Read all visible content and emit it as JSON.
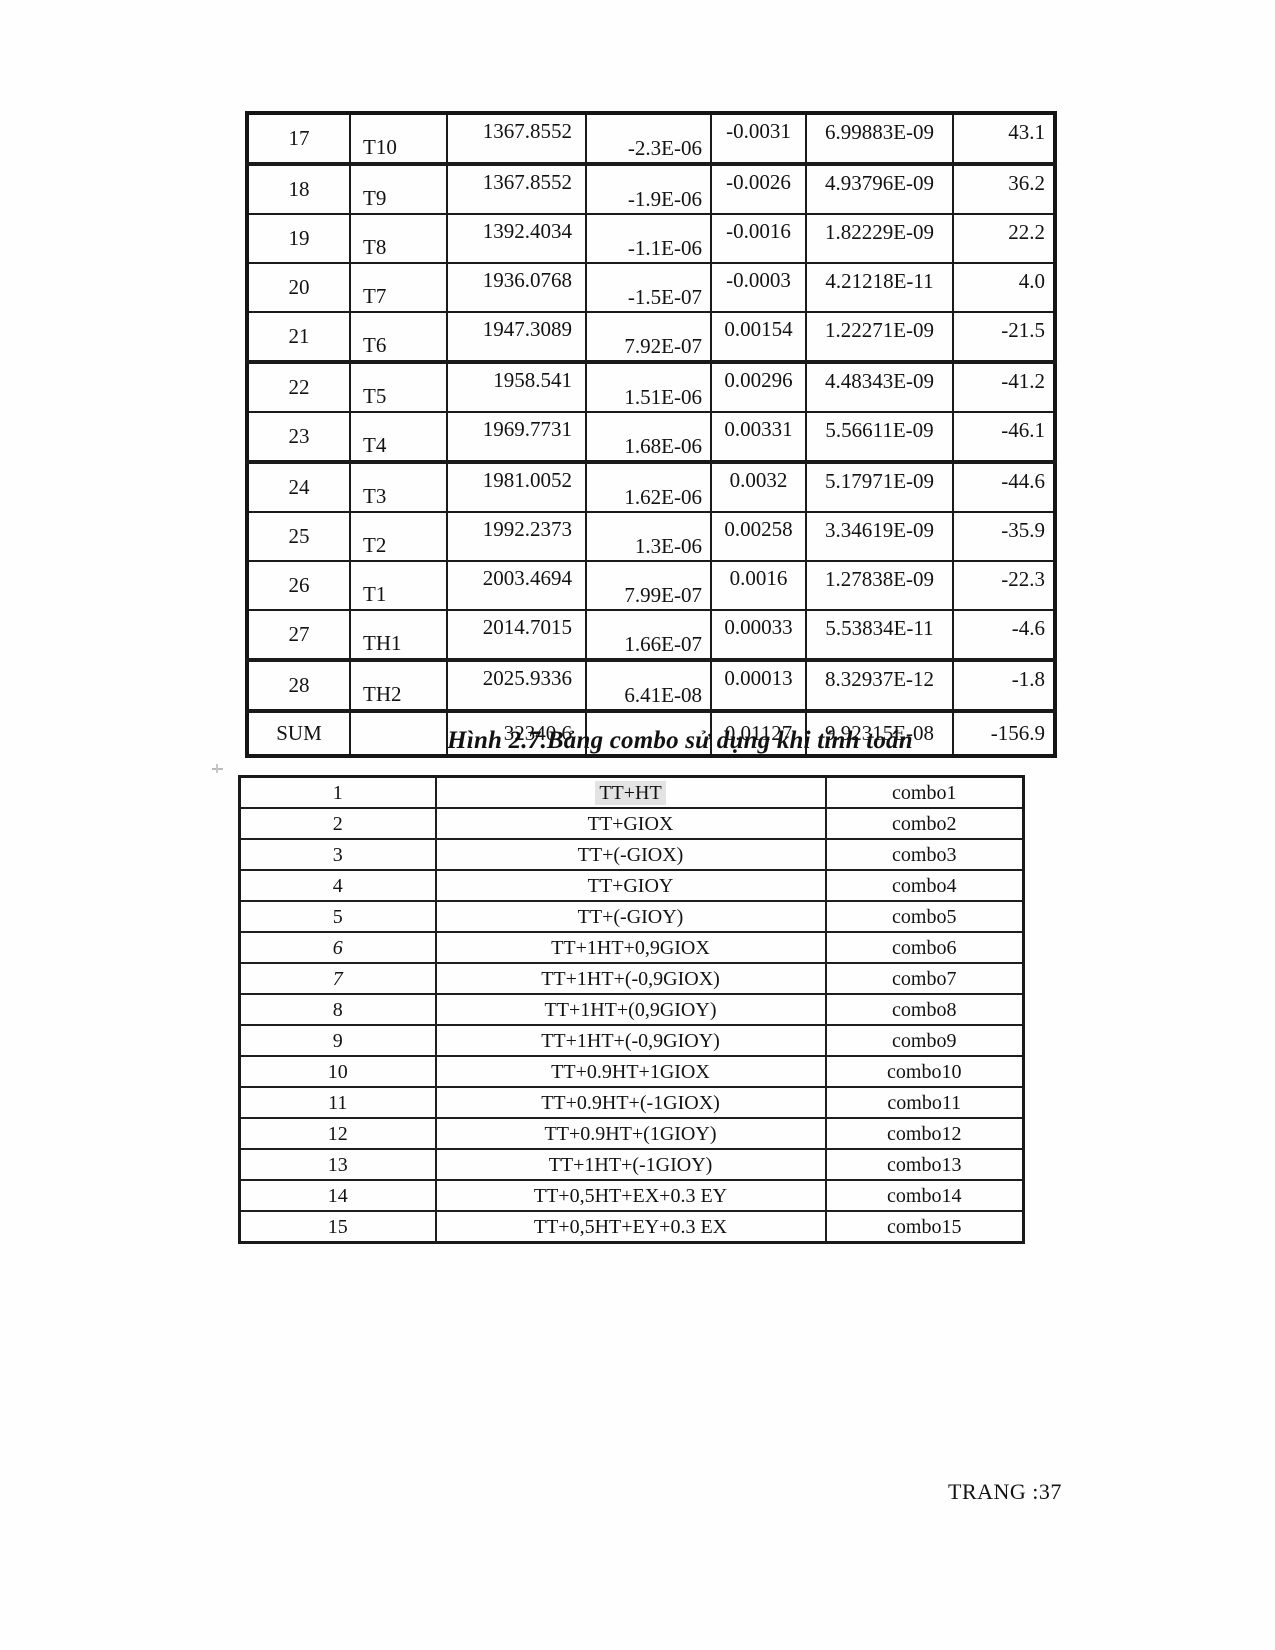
{
  "page": {
    "footer": "TRANG :37"
  },
  "caption": "Hình 2.7.Bảng combo sử dụng khi tính toán",
  "results_table": {
    "rows": [
      {
        "no": "17",
        "label": "T10",
        "v1": "1367.8552",
        "v2": "-2.3E-06",
        "v3": "-0.0031",
        "v4": "6.99883E-09",
        "v5": "43.1"
      },
      {
        "no": "18",
        "label": "T9",
        "v1": "1367.8552",
        "v2": "-1.9E-06",
        "v3": "-0.0026",
        "v4": "4.93796E-09",
        "v5": "36.2"
      },
      {
        "no": "19",
        "label": "T8",
        "v1": "1392.4034",
        "v2": "-1.1E-06",
        "v3": "-0.0016",
        "v4": "1.82229E-09",
        "v5": "22.2"
      },
      {
        "no": "20",
        "label": "T7",
        "v1": "1936.0768",
        "v2": "-1.5E-07",
        "v3": "-0.0003",
        "v4": "4.21218E-11",
        "v5": "4.0"
      },
      {
        "no": "21",
        "label": "T6",
        "v1": "1947.3089",
        "v2": "7.92E-07",
        "v3": "0.00154",
        "v4": "1.22271E-09",
        "v5": "-21.5"
      },
      {
        "no": "22",
        "label": "T5",
        "v1": "1958.541",
        "v2": "1.51E-06",
        "v3": "0.00296",
        "v4": "4.48343E-09",
        "v5": "-41.2"
      },
      {
        "no": "23",
        "label": "T4",
        "v1": "1969.7731",
        "v2": "1.68E-06",
        "v3": "0.00331",
        "v4": "5.56611E-09",
        "v5": "-46.1"
      },
      {
        "no": "24",
        "label": "T3",
        "v1": "1981.0052",
        "v2": "1.62E-06",
        "v3": "0.0032",
        "v4": "5.17971E-09",
        "v5": "-44.6"
      },
      {
        "no": "25",
        "label": "T2",
        "v1": "1992.2373",
        "v2": "1.3E-06",
        "v3": "0.00258",
        "v4": "3.34619E-09",
        "v5": "-35.9"
      },
      {
        "no": "26",
        "label": "T1",
        "v1": "2003.4694",
        "v2": "7.99E-07",
        "v3": "0.0016",
        "v4": "1.27838E-09",
        "v5": "-22.3"
      },
      {
        "no": "27",
        "label": "TH1",
        "v1": "2014.7015",
        "v2": "1.66E-07",
        "v3": "0.00033",
        "v4": "5.53834E-11",
        "v5": "-4.6"
      },
      {
        "no": "28",
        "label": "TH2",
        "v1": "2025.9336",
        "v2": "6.41E-08",
        "v3": "0.00013",
        "v4": "8.32937E-12",
        "v5": "-1.8"
      },
      {
        "no": "SUM",
        "label": "",
        "v1": "32340.6",
        "v2": "",
        "v3": "0.01127",
        "v4": "9.92315E-08",
        "v5": "-156.9",
        "sum": true
      }
    ]
  },
  "combo_table": {
    "rows": [
      {
        "no": "1",
        "formula": "TT+HT",
        "name": "combo1",
        "highlight": true
      },
      {
        "no": "2",
        "formula": "TT+GIOX",
        "name": "combo2"
      },
      {
        "no": "3",
        "formula": "TT+(-GIOX)",
        "name": "combo3"
      },
      {
        "no": "4",
        "formula": "TT+GIOY",
        "name": "combo4"
      },
      {
        "no": "5",
        "formula": "TT+(-GIOY)",
        "name": "combo5"
      },
      {
        "no": "6",
        "formula": "TT+1HT+0,9GIOX",
        "name": "combo6",
        "italic_no": true
      },
      {
        "no": "7",
        "formula": "TT+1HT+(-0,9GIOX)",
        "name": "combo7",
        "italic_no": true
      },
      {
        "no": "8",
        "formula": "TT+1HT+(0,9GIOY)",
        "name": "combo8"
      },
      {
        "no": "9",
        "formula": "TT+1HT+(-0,9GIOY)",
        "name": "combo9"
      },
      {
        "no": "10",
        "formula": "TT+0.9HT+1GIOX",
        "name": "combo10"
      },
      {
        "no": "11",
        "formula": "TT+0.9HT+(-1GIOX)",
        "name": "combo11"
      },
      {
        "no": "12",
        "formula": "TT+0.9HT+(1GIOY)",
        "name": "combo12"
      },
      {
        "no": "13",
        "formula": "TT+1HT+(-1GIOY)",
        "name": "combo13"
      },
      {
        "no": "14",
        "formula": "TT+0,5HT+EX+0.3 EY",
        "name": "combo14"
      },
      {
        "no": "15",
        "formula": "TT+0,5HT+EY+0.3 EX",
        "name": "combo15"
      }
    ]
  }
}
